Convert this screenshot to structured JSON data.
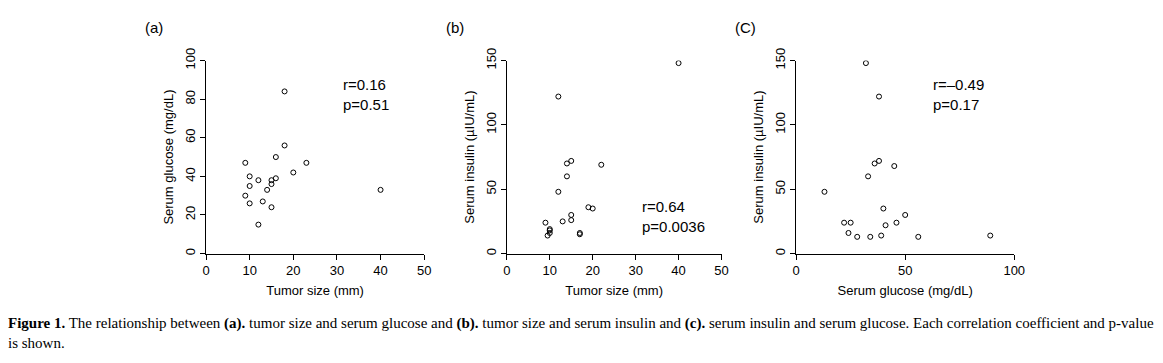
{
  "chart_data": [
    {
      "type": "scatter",
      "title": "(a)",
      "x_label": "Tumor size (mm)",
      "y_label": "Serum glucose (mg/dL)",
      "x": [
        9,
        9,
        10,
        10,
        10,
        12,
        12,
        13,
        14,
        15,
        15,
        15,
        16,
        16,
        18,
        18,
        20,
        23,
        40
      ],
      "values": [
        47,
        30,
        26,
        40,
        35,
        38,
        15,
        27,
        33,
        36,
        24,
        38,
        50,
        39,
        84,
        56,
        42,
        47,
        33
      ],
      "color": "#000000",
      "marker": "open circle",
      "xlim": [
        0,
        50
      ],
      "xticks": [
        0,
        10,
        20,
        30,
        40,
        50
      ],
      "ylim": [
        0,
        100
      ],
      "yticks": [
        0,
        20,
        40,
        60,
        80,
        100
      ],
      "grid": false,
      "annotations": [
        "r=0.16",
        "p=0.51"
      ]
    },
    {
      "type": "scatter",
      "title": "(b)",
      "x_label": "Tumor size (mm)",
      "y_label": "Serum insulin (µIU/mL)",
      "x": [
        9,
        9.5,
        10,
        10,
        10,
        12,
        12,
        13,
        14,
        14,
        15,
        15,
        15,
        17,
        17,
        19,
        20,
        22,
        40
      ],
      "values": [
        24,
        14,
        16,
        18,
        19,
        48,
        122,
        25,
        60,
        70,
        72,
        30,
        26,
        15,
        16,
        36,
        35,
        69,
        148
      ],
      "color": "#000000",
      "marker": "open circle",
      "xlim": [
        0,
        50
      ],
      "xticks": [
        0,
        10,
        20,
        30,
        40,
        50
      ],
      "ylim": [
        0,
        150
      ],
      "yticks": [
        0,
        50,
        100,
        150
      ],
      "grid": false,
      "annotations": [
        "r=0.64",
        "p=0.0036"
      ]
    },
    {
      "type": "scatter",
      "title": "(C)",
      "x_label": "Serum glucose (mg/dL)",
      "y_label": "Serum insulin (µIU/mL)",
      "x": [
        13,
        22,
        24,
        25,
        28,
        32,
        33,
        34,
        36,
        38,
        38,
        39,
        40,
        41,
        45,
        46,
        50,
        56,
        89
      ],
      "values": [
        48,
        24,
        16,
        24,
        13,
        148,
        60,
        13,
        70,
        122,
        72,
        14,
        35,
        22,
        68,
        24,
        30,
        13,
        14
      ],
      "color": "#000000",
      "marker": "open circle",
      "xlim": [
        0,
        100
      ],
      "xticks": [
        0,
        50,
        100
      ],
      "ylim": [
        0,
        150
      ],
      "yticks": [
        0,
        50,
        100,
        150
      ],
      "grid": false,
      "annotations": [
        "r=–0.49",
        "p=0.17"
      ]
    }
  ],
  "caption": [
    {
      "text": "Figure 1.",
      "bold": true
    },
    {
      "text": " The relationship between ",
      "bold": false
    },
    {
      "text": "(a).",
      "bold": true
    },
    {
      "text": " tumor size and serum glucose and ",
      "bold": false
    },
    {
      "text": "(b).",
      "bold": true
    },
    {
      "text": " tumor size and serum insulin and ",
      "bold": false
    },
    {
      "text": "(c).",
      "bold": true
    },
    {
      "text": " serum insulin and serum glucose. Each correlation coefficient and p-value is shown.",
      "bold": false
    }
  ]
}
